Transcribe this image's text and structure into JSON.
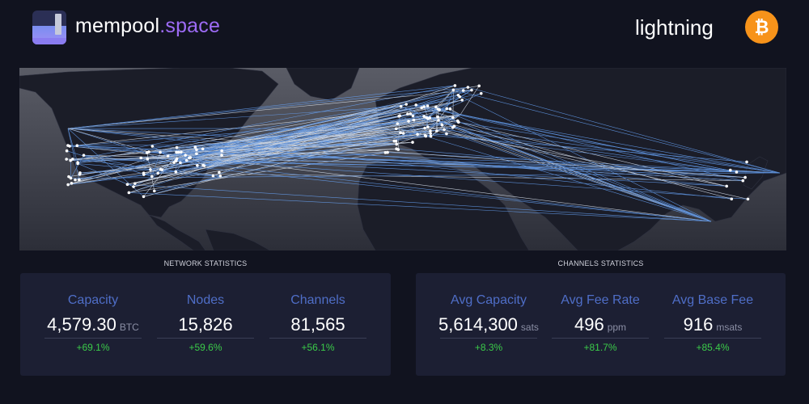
{
  "header": {
    "brand_part1": "mempool",
    "brand_part2": ".space",
    "nav_label": "lightning",
    "logo_icon": "mempool-logo",
    "network_icon": "bitcoin-icon",
    "network_symbol": "₿"
  },
  "map": {
    "name": "lightning-nodes-world-map",
    "land_color": "#1b1d28",
    "water_color": "#3a3c45",
    "channel_color": "#6aa8ff",
    "node_color": "#ffffff"
  },
  "network_stats": {
    "label": "NETWORK STATISTICS",
    "capacity": {
      "title": "Capacity",
      "value": "4,579.30",
      "unit": "BTC",
      "change": "+69.1%"
    },
    "nodes": {
      "title": "Nodes",
      "value": "15,826",
      "unit": "",
      "change": "+59.6%"
    },
    "channels": {
      "title": "Channels",
      "value": "81,565",
      "unit": "",
      "change": "+56.1%"
    }
  },
  "channel_stats": {
    "label": "CHANNELS STATISTICS",
    "avg_capacity": {
      "title": "Avg Capacity",
      "value": "5,614,300",
      "unit": "sats",
      "change": "+8.3%"
    },
    "avg_fee_rate": {
      "title": "Avg Fee Rate",
      "value": "496",
      "unit": "ppm",
      "change": "+81.7%"
    },
    "avg_base_fee": {
      "title": "Avg Base Fee",
      "value": "916",
      "unit": "msats",
      "change": "+85.4%"
    }
  },
  "colors": {
    "background": "#11131f",
    "panel": "#1c1f33",
    "stat_title": "#4f6ec7",
    "positive_change": "#3bcc49",
    "brand_accent": "#9d6bf5",
    "bitcoin_orange": "#f7931a"
  }
}
